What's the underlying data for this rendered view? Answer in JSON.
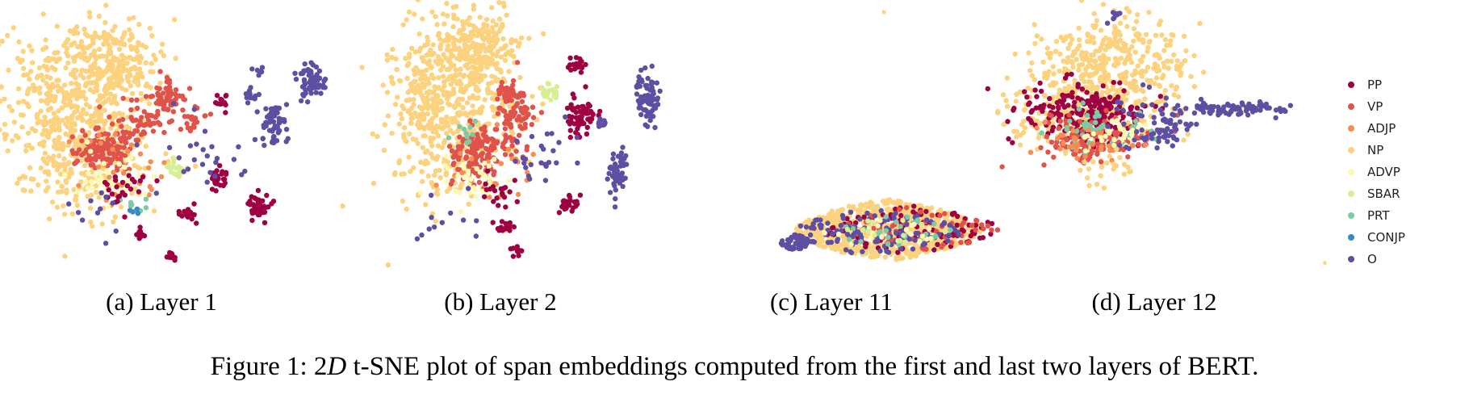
{
  "figure": {
    "caption_prefix": "Figure 1: 2",
    "caption_italic": "D",
    "caption_rest": " t-SNE plot of span embeddings computed from the first and last two layers of BERT."
  },
  "legend": {
    "entries": [
      {
        "label": "PP",
        "color": "#9e0142"
      },
      {
        "label": "VP",
        "color": "#e0534a"
      },
      {
        "label": "ADJP",
        "color": "#f68d54"
      },
      {
        "label": "NP",
        "color": "#fdd27e"
      },
      {
        "label": "ADVP",
        "color": "#fdf9b4"
      },
      {
        "label": "SBAR",
        "color": "#d7ef93"
      },
      {
        "label": "PRT",
        "color": "#7ccba4"
      },
      {
        "label": "CONJP",
        "color": "#3a8bbb"
      },
      {
        "label": "O",
        "color": "#5e4fa2"
      }
    ]
  },
  "chart_data": [
    {
      "type": "scatter",
      "title": "(a) Layer 1",
      "series": [
        "PP",
        "VP",
        "ADJP",
        "NP",
        "ADVP",
        "SBAR",
        "PRT",
        "CONJP",
        "O"
      ]
    },
    {
      "type": "scatter",
      "title": "(b) Layer 2",
      "series": [
        "PP",
        "VP",
        "ADJP",
        "NP",
        "ADVP",
        "SBAR",
        "PRT",
        "CONJP",
        "O"
      ]
    },
    {
      "type": "scatter",
      "title": "(c) Layer 11",
      "series": [
        "PP",
        "VP",
        "ADJP",
        "NP",
        "ADVP",
        "SBAR",
        "PRT",
        "CONJP",
        "O"
      ]
    },
    {
      "type": "scatter",
      "title": "(d) Layer 12",
      "series": [
        "PP",
        "VP",
        "ADJP",
        "NP",
        "ADVP",
        "SBAR",
        "PRT",
        "CONJP",
        "O"
      ]
    }
  ]
}
